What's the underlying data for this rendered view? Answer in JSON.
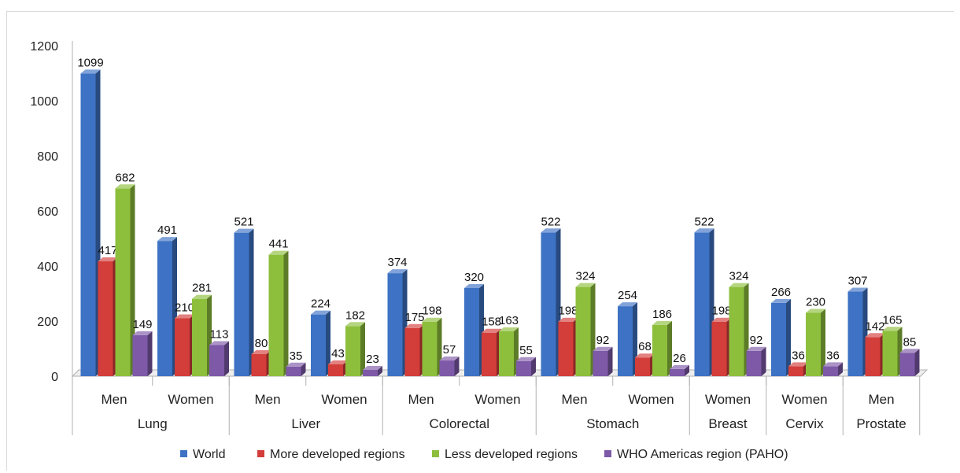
{
  "chart_data": {
    "type": "bar",
    "title": "",
    "xlabel": "",
    "ylabel": "",
    "ylim": [
      0,
      1200
    ],
    "yticks": [
      "0",
      "200",
      "400",
      "600",
      "800",
      "1000",
      "1200"
    ],
    "grid": false,
    "legend_position": "bottom",
    "groups": [
      {
        "name": "Lung",
        "categories": [
          "Men",
          "Women"
        ]
      },
      {
        "name": "Liver",
        "categories": [
          "Men",
          "Women"
        ]
      },
      {
        "name": "Colorectal",
        "categories": [
          "Men",
          "Women"
        ]
      },
      {
        "name": "Stomach",
        "categories": [
          "Men",
          "Women"
        ]
      },
      {
        "name": "Breast",
        "categories": [
          "Women"
        ]
      },
      {
        "name": "Cervix",
        "categories": [
          "Women"
        ]
      },
      {
        "name": "Prostate",
        "categories": [
          "Men"
        ]
      }
    ],
    "series": [
      {
        "name": "World",
        "color": "#3d72c4",
        "values": [
          1099,
          491,
          521,
          224,
          374,
          320,
          522,
          254,
          522,
          266,
          307
        ],
        "labels": [
          "1099",
          "491",
          "521",
          "224",
          "374",
          "320",
          "522",
          "254",
          "522",
          "266",
          "307"
        ]
      },
      {
        "name": "More developed regions",
        "color": "#d33d3a",
        "values": [
          417,
          210,
          80,
          43,
          175,
          158,
          198,
          68,
          198,
          36,
          142
        ],
        "labels": [
          "417",
          "210",
          "80",
          "43",
          "175",
          "158",
          "198",
          "68",
          "198",
          "36",
          "142"
        ]
      },
      {
        "name": "Less developed regions",
        "color": "#8dbf3c",
        "values": [
          682,
          281,
          441,
          182,
          198,
          163,
          324,
          186,
          324,
          230,
          165
        ],
        "labels": [
          "682",
          "281",
          "441",
          "182",
          "198",
          "163",
          "324",
          "186",
          "324",
          "230",
          "165"
        ]
      },
      {
        "name": "WHO Americas region (PAHO)",
        "color": "#7d59a8",
        "values": [
          149,
          113,
          35,
          23,
          57,
          55,
          92,
          26,
          92,
          36,
          85
        ],
        "labels": [
          "149",
          "113",
          "35",
          "23",
          "57",
          "55",
          "92",
          "26",
          "92",
          "36",
          "85"
        ]
      }
    ]
  }
}
